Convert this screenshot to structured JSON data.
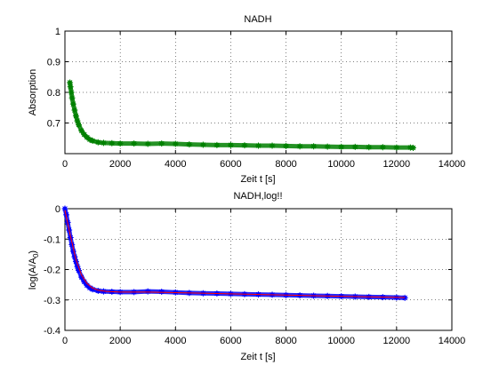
{
  "figure": {
    "background": "#ffffff"
  },
  "chart_data": [
    {
      "type": "scatter",
      "title": "NADH",
      "xlabel": "Zeit t [s]",
      "ylabel": "Absorption",
      "xlim": [
        0,
        14000
      ],
      "ylim": [
        0.6,
        1.0
      ],
      "xticks": [
        0,
        2000,
        4000,
        6000,
        8000,
        10000,
        12000,
        14000
      ],
      "yticks": [
        0.7,
        0.8,
        0.9,
        1.0
      ],
      "xtick_labels": [
        "0",
        "2000",
        "4000",
        "6000",
        "8000",
        "10000",
        "12000",
        "14000"
      ],
      "ytick_labels": [
        "0.7",
        "0.8",
        "0.9",
        "1"
      ],
      "grid": true,
      "series": [
        {
          "marker": "asterisk",
          "color": "#008000",
          "x": [
            180,
            200,
            230,
            260,
            300,
            350,
            400,
            450,
            500,
            600,
            700,
            800,
            900,
            1000,
            1200,
            1400,
            1700,
            2000,
            2500,
            3000,
            3500,
            4000,
            4500,
            5000,
            5500,
            6000,
            6500,
            7000,
            7500,
            8000,
            8500,
            9000,
            9500,
            10000,
            10500,
            11000,
            11500,
            12000,
            12500,
            12600
          ],
          "y": [
            0.832,
            0.818,
            0.8,
            0.782,
            0.762,
            0.742,
            0.723,
            0.707,
            0.694,
            0.675,
            0.662,
            0.653,
            0.646,
            0.642,
            0.637,
            0.635,
            0.634,
            0.633,
            0.633,
            0.632,
            0.633,
            0.632,
            0.63,
            0.629,
            0.628,
            0.628,
            0.627,
            0.626,
            0.626,
            0.625,
            0.624,
            0.624,
            0.623,
            0.622,
            0.622,
            0.621,
            0.621,
            0.62,
            0.62,
            0.619
          ]
        }
      ]
    },
    {
      "type": "scatter",
      "title": "NADH,log!!",
      "xlabel": "Zeit t [s]",
      "ylabel": "log(A/A",
      "ylabel_sub": "0",
      "ylabel_end": ")",
      "xlim": [
        0,
        14000
      ],
      "ylim": [
        -0.4,
        0.0
      ],
      "xticks": [
        0,
        2000,
        4000,
        6000,
        8000,
        10000,
        12000,
        14000
      ],
      "yticks": [
        -0.4,
        -0.3,
        -0.2,
        -0.1,
        0.0
      ],
      "xtick_labels": [
        "0",
        "2000",
        "4000",
        "6000",
        "8000",
        "10000",
        "12000",
        "14000"
      ],
      "ytick_labels": [
        "-0.4",
        "-0.3",
        "-0.2",
        "-0.1",
        "0"
      ],
      "grid": true,
      "series": [
        {
          "marker": "asterisk",
          "color": "#0000ff",
          "x": [
            0,
            50,
            100,
            150,
            200,
            250,
            300,
            350,
            400,
            450,
            500,
            600,
            700,
            800,
            900,
            1000,
            1200,
            1400,
            1700,
            2000,
            2500,
            3000,
            3500,
            4000,
            4500,
            5000,
            5500,
            6000,
            6500,
            7000,
            7500,
            8000,
            8500,
            9000,
            9500,
            10000,
            10500,
            11000,
            11500,
            12000,
            12300
          ],
          "y": [
            0.0,
            -0.02,
            -0.045,
            -0.07,
            -0.095,
            -0.118,
            -0.14,
            -0.158,
            -0.174,
            -0.19,
            -0.203,
            -0.225,
            -0.24,
            -0.252,
            -0.26,
            -0.265,
            -0.27,
            -0.272,
            -0.273,
            -0.274,
            -0.274,
            -0.272,
            -0.273,
            -0.275,
            -0.277,
            -0.278,
            -0.279,
            -0.28,
            -0.281,
            -0.282,
            -0.283,
            -0.284,
            -0.285,
            -0.286,
            -0.287,
            -0.288,
            -0.289,
            -0.29,
            -0.291,
            -0.292,
            -0.293
          ]
        },
        {
          "line": "solid",
          "color": "#ff0000",
          "x": [
            0,
            200,
            400,
            600,
            800,
            1000,
            1200,
            1500,
            2000,
            3000,
            4000,
            6000,
            8000,
            10000,
            12300
          ],
          "y": [
            -0.005,
            -0.09,
            -0.168,
            -0.218,
            -0.246,
            -0.261,
            -0.268,
            -0.272,
            -0.274,
            -0.274,
            -0.276,
            -0.28,
            -0.284,
            -0.288,
            -0.292
          ]
        }
      ]
    }
  ]
}
